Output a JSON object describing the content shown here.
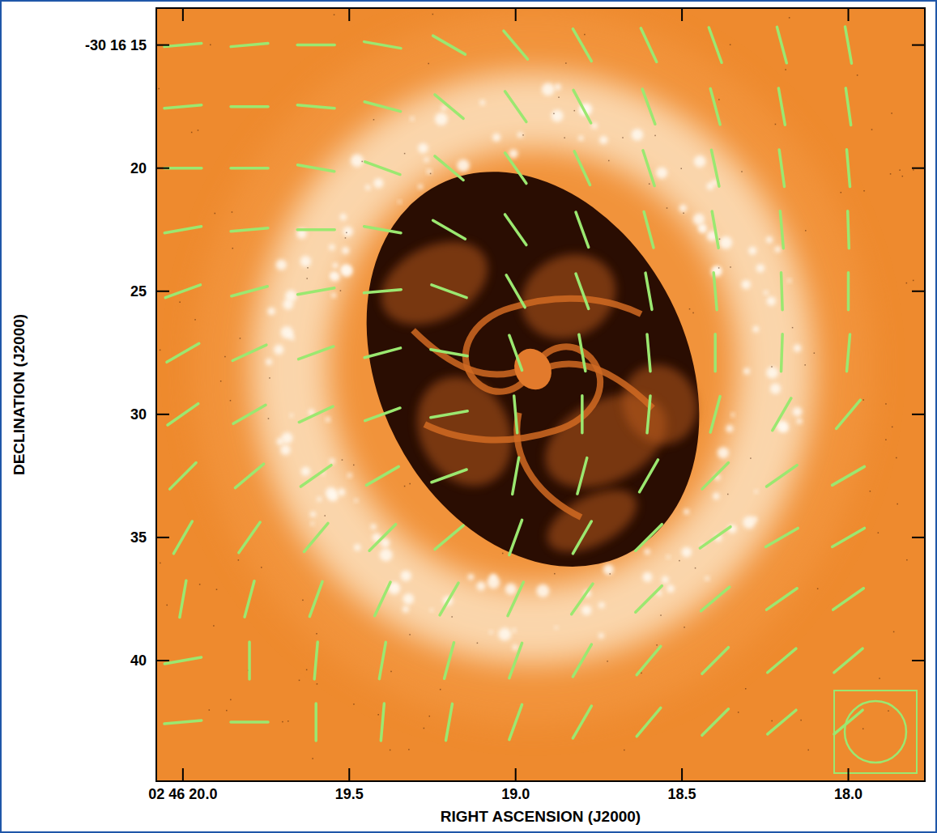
{
  "chart_data": {
    "type": "vector_field",
    "x_label": "RIGHT ASCENSION (J2000)",
    "y_label": "DECLINATION (J2000)",
    "xlim": [
      20.08,
      17.77
    ],
    "ylim": [
      44.9,
      13.5
    ],
    "xticks": [
      {
        "value": 20.0,
        "label": "02 46 20.0"
      },
      19.5,
      {
        "value": 19.0,
        "label": "19.0"
      },
      18.5,
      {
        "value": 18.0,
        "label": "18.0"
      }
    ],
    "yticks": [
      {
        "value": 15,
        "label": "-30 16 15"
      },
      20,
      25,
      30,
      35,
      40
    ],
    "color": "#9be870",
    "vector_x": [
      20.0,
      19.8,
      19.6,
      19.4,
      19.2,
      19.0,
      18.8,
      18.6,
      18.4,
      18.2,
      18.0
    ],
    "vector_y": [
      15,
      17.5,
      20,
      22.5,
      25,
      27.5,
      30,
      32.5,
      35,
      37.5,
      40,
      42.5
    ],
    "vector_angle": [
      [
        5,
        5,
        0,
        170,
        150,
        130,
        120,
        115,
        110,
        105,
        100
      ],
      [
        5,
        0,
        175,
        165,
        140,
        125,
        118,
        110,
        105,
        100,
        98
      ],
      [
        0,
        0,
        170,
        160,
        140,
        125,
        115,
        108,
        102,
        98,
        95
      ],
      [
        10,
        5,
        0,
        170,
        150,
        125,
        110,
        105,
        100,
        95,
        92
      ],
      [
        20,
        15,
        10,
        5,
        160,
        120,
        110,
        100,
        95,
        92,
        90
      ],
      [
        30,
        25,
        20,
        15,
        170,
        110,
        100,
        95,
        90,
        88,
        85
      ],
      [
        35,
        30,
        25,
        20,
        10,
        95,
        90,
        85,
        75,
        60,
        50
      ],
      [
        45,
        40,
        35,
        30,
        20,
        80,
        75,
        60,
        45,
        35,
        30
      ],
      [
        60,
        55,
        50,
        45,
        40,
        70,
        60,
        45,
        35,
        30,
        30
      ],
      [
        80,
        75,
        70,
        65,
        60,
        65,
        55,
        45,
        40,
        35,
        35
      ],
      [
        10,
        90,
        85,
        80,
        75,
        70,
        60,
        50,
        45,
        40,
        40
      ],
      [
        5,
        0,
        90,
        85,
        80,
        70,
        60,
        50,
        45,
        40,
        40
      ]
    ]
  }
}
